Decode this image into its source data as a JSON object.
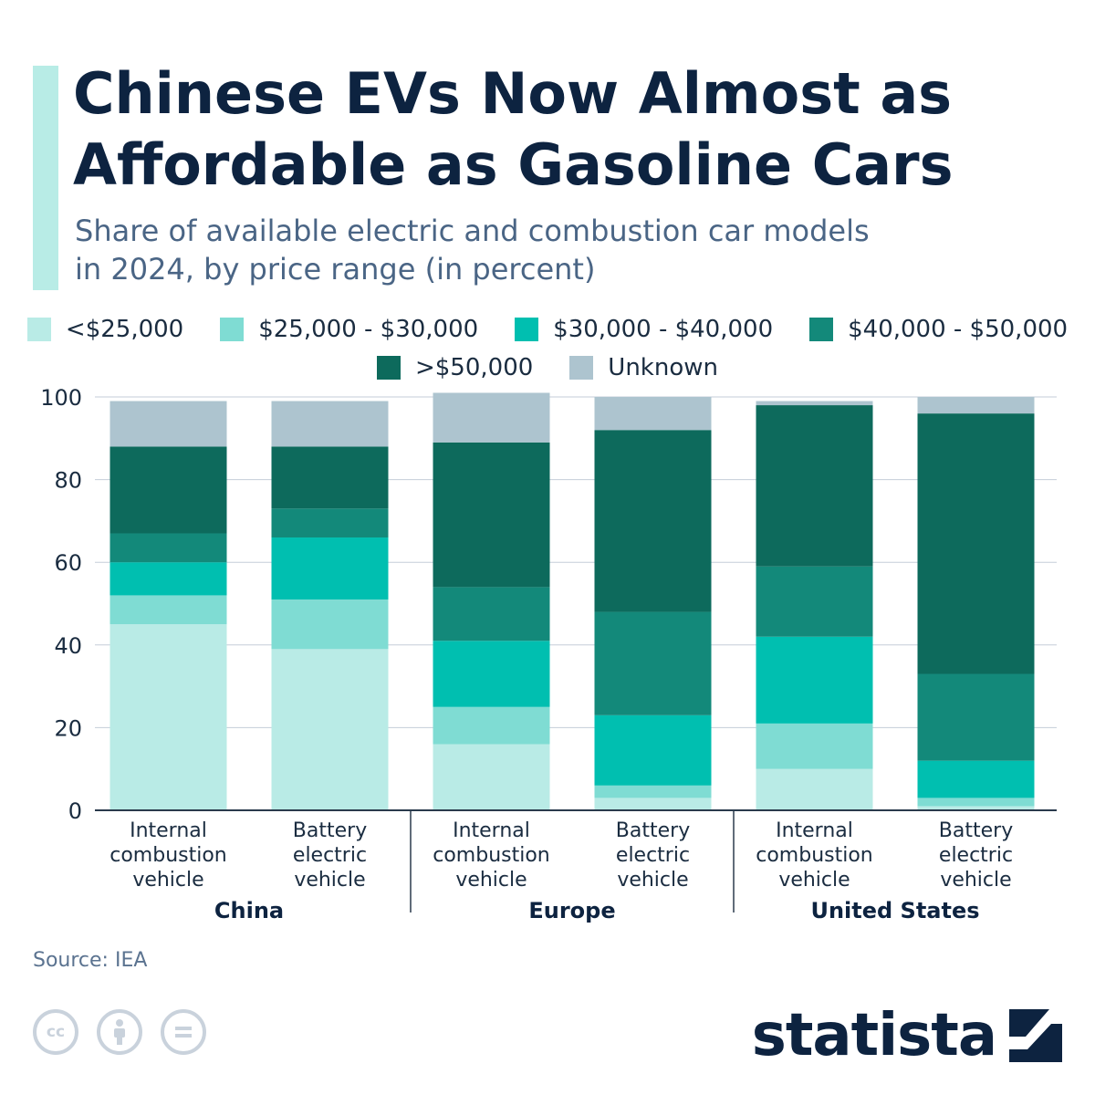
{
  "title_lines": [
    "Chinese EVs Now Almost as",
    "Affordable as Gasoline Cars"
  ],
  "subtitle_lines": [
    "Share of available electric and combustion car models",
    "in 2024, by price range (in percent)"
  ],
  "source": "Source: IEA",
  "logo": "statista",
  "license_icons": [
    "cc-icon",
    "attribution-icon",
    "no-derivatives-icon"
  ],
  "legend": [
    {
      "label": "<$25,000",
      "color": "#b9ebe6"
    },
    {
      "label": "$25,000 - $30,000",
      "color": "#7fdcd3"
    },
    {
      "label": "$30,000 - $40,000",
      "color": "#00bfb0"
    },
    {
      "label": "$40,000 - $50,000",
      "color": "#13897a"
    },
    {
      "label": ">$50,000",
      "color": "#0d6a5c"
    },
    {
      "label": "Unknown",
      "color": "#adc4cf"
    }
  ],
  "chart_data": {
    "type": "bar",
    "stacked": true,
    "ylim": [
      0,
      100
    ],
    "yticks": [
      0,
      20,
      40,
      60,
      80,
      100
    ],
    "grid": true,
    "legend_position": "top",
    "groups": [
      "China",
      "Europe",
      "United States"
    ],
    "categories": [
      {
        "group": "China",
        "label_lines": [
          "Internal",
          "combustion",
          "vehicle"
        ]
      },
      {
        "group": "China",
        "label_lines": [
          "Battery",
          "electric",
          "vehicle"
        ]
      },
      {
        "group": "Europe",
        "label_lines": [
          "Internal",
          "combustion",
          "vehicle"
        ]
      },
      {
        "group": "Europe",
        "label_lines": [
          "Battery",
          "electric",
          "vehicle"
        ]
      },
      {
        "group": "United States",
        "label_lines": [
          "Internal",
          "combustion",
          "vehicle"
        ]
      },
      {
        "group": "United States",
        "label_lines": [
          "Battery",
          "electric",
          "vehicle"
        ]
      }
    ],
    "series": [
      {
        "name": "<$25,000",
        "color": "#b9ebe6",
        "values": [
          45,
          39,
          16,
          3,
          10,
          1
        ]
      },
      {
        "name": "$25,000 - $30,000",
        "color": "#7fdcd3",
        "values": [
          7,
          12,
          9,
          3,
          11,
          2
        ]
      },
      {
        "name": "$30,000 - $40,000",
        "color": "#00bfb0",
        "values": [
          8,
          15,
          16,
          17,
          21,
          9
        ]
      },
      {
        "name": "$40,000 - $50,000",
        "color": "#13897a",
        "values": [
          7,
          7,
          13,
          25,
          17,
          21
        ]
      },
      {
        "name": ">$50,000",
        "color": "#0d6a5c",
        "values": [
          21,
          15,
          35,
          44,
          39,
          63
        ]
      },
      {
        "name": "Unknown",
        "color": "#adc4cf",
        "values": [
          11,
          11,
          12,
          8,
          1,
          4
        ]
      }
    ]
  }
}
